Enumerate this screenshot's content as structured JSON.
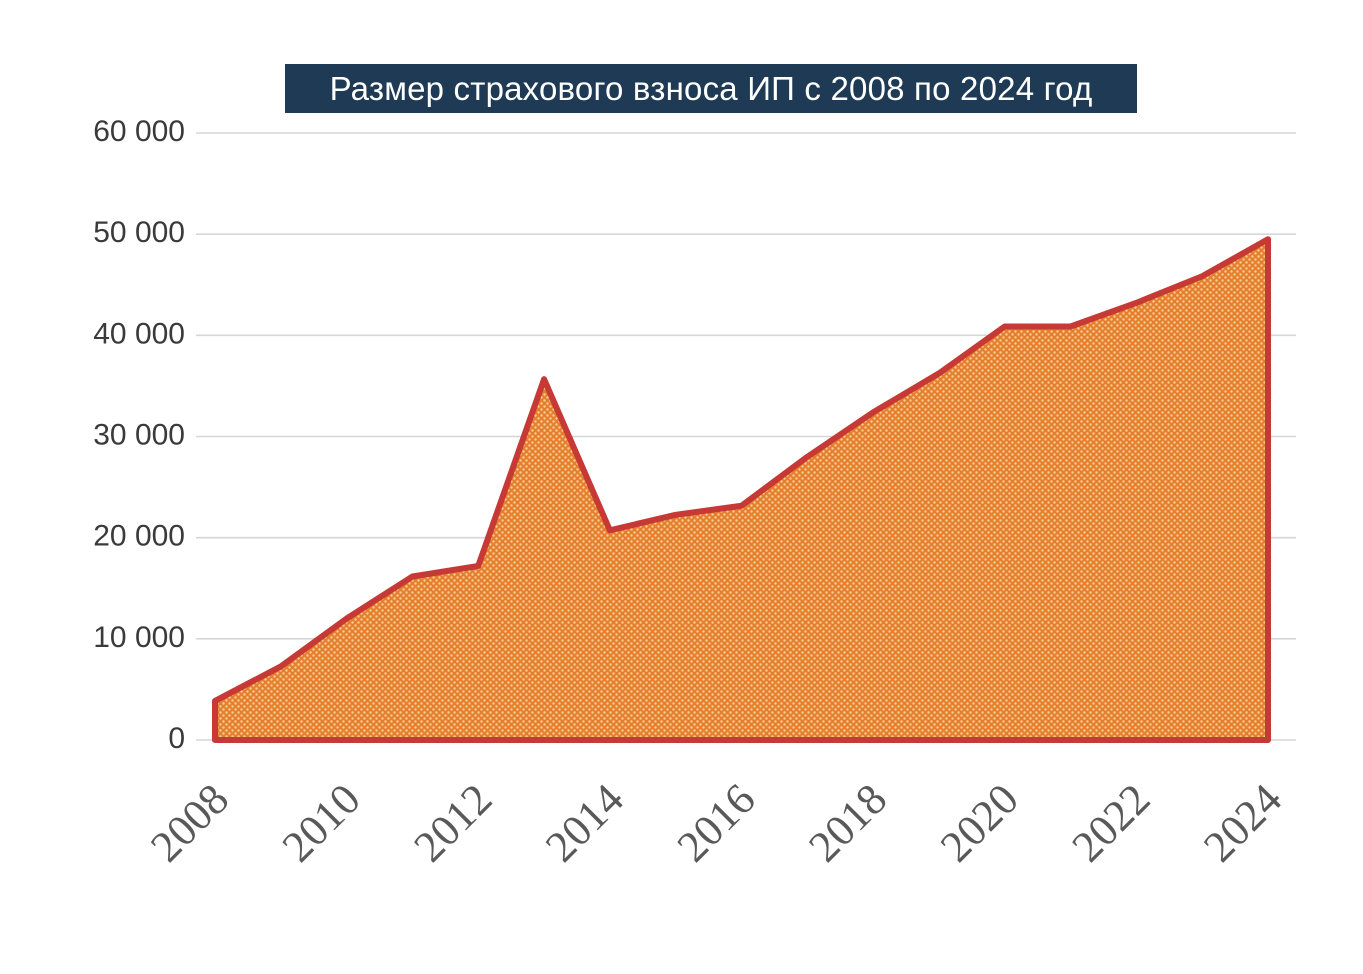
{
  "chart_data": {
    "type": "area",
    "title": "Размер страхового взноса ИП с 2008 по 2024 год",
    "x": [
      2008,
      2009,
      2010,
      2011,
      2012,
      2013,
      2014,
      2015,
      2016,
      2017,
      2018,
      2019,
      2020,
      2021,
      2022,
      2023,
      2024
    ],
    "values": [
      3864,
      7274,
      12003,
      16160,
      17208,
      35665,
      20728,
      22261,
      23153,
      27990,
      32385,
      36238,
      40874,
      40874,
      43211,
      45842,
      49500
    ],
    "x_tick_years": [
      2008,
      2010,
      2012,
      2014,
      2016,
      2018,
      2020,
      2022,
      2024
    ],
    "x_tick_labels": [
      "2008",
      "2010",
      "2012",
      "2014",
      "2016",
      "2018",
      "2020",
      "2022",
      "2024"
    ],
    "y_ticks": [
      0,
      10000,
      20000,
      30000,
      40000,
      50000,
      60000
    ],
    "y_tick_labels": [
      "0",
      "10 000",
      "20 000",
      "30 000",
      "40 000",
      "50 000",
      "60 000"
    ],
    "ylim": [
      0,
      60000
    ],
    "xlabel": "",
    "ylabel": "",
    "grid": "horizontal",
    "legend": "none",
    "colors": {
      "area_fill": "#E57E2D",
      "area_dot": "#F7CE93",
      "line": "#C63934",
      "grid": "#D6D6D6",
      "title_bg": "#1F3A54",
      "title_text": "#FFFFFF",
      "x_axis_text": "#595959",
      "y_axis_text": "#3A3A3A"
    }
  }
}
